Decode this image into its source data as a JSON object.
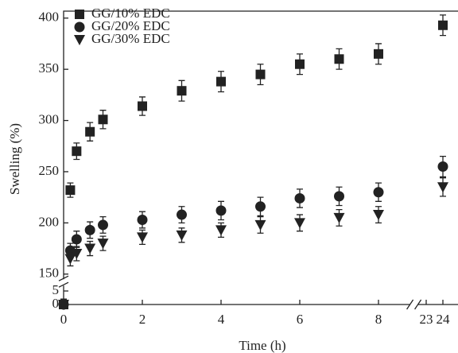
{
  "chart_data": {
    "type": "scatter",
    "x_label": "Time (h)",
    "y_label": "Swelling (%)",
    "x": [
      0,
      0.17,
      0.33,
      0.67,
      1,
      2,
      3,
      4,
      5,
      6,
      7,
      8,
      24
    ],
    "series": [
      {
        "name": "GG/10% EDC",
        "color": "#222222",
        "marker": "square",
        "values": [
          0,
          232,
          270,
          289,
          301,
          314,
          329,
          338,
          345,
          355,
          360,
          365,
          393
        ],
        "errors": [
          2,
          7,
          8,
          9,
          9,
          9,
          10,
          10,
          10,
          10,
          10,
          10,
          10
        ]
      },
      {
        "name": "GG/20% EDC",
        "color": "#222222",
        "marker": "circle",
        "values": [
          0,
          173,
          184,
          193,
          198,
          203,
          208,
          212,
          216,
          224,
          226,
          230,
          255
        ],
        "errors": [
          2,
          7,
          8,
          8,
          8,
          8,
          8,
          9,
          9,
          9,
          9,
          9,
          10
        ]
      },
      {
        "name": "GG/30% EDC",
        "color": "#222222",
        "marker": "triangle-down",
        "values": [
          0,
          165,
          170,
          175,
          180,
          186,
          188,
          193,
          198,
          200,
          205,
          208,
          235
        ],
        "errors": [
          2,
          7,
          7,
          7,
          7,
          7,
          7,
          7,
          8,
          8,
          8,
          8,
          9
        ]
      }
    ],
    "xlim": [
      0,
      24
    ],
    "xticks": [
      0,
      2,
      4,
      6,
      8,
      23,
      24
    ],
    "x_break": [
      8.8,
      22.6
    ],
    "ylim": [
      0,
      410
    ],
    "yticks": [
      0,
      5,
      150,
      200,
      250,
      300,
      350,
      400
    ],
    "y_break": [
      7,
      145
    ],
    "legend": "upper left"
  }
}
